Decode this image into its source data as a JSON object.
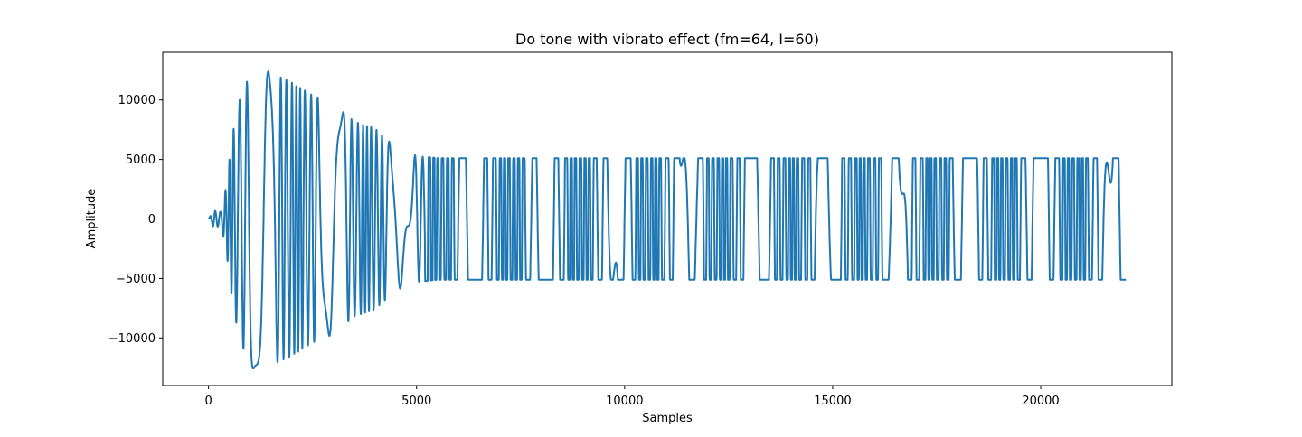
{
  "chart_data": {
    "type": "line",
    "title": "Do tone with vibrato effect (fm=64, I=60)",
    "xlabel": "Samples",
    "ylabel": "Amplitude",
    "xlim": [
      -1100,
      23150
    ],
    "ylim": [
      -14000,
      14000
    ],
    "xticks": [
      0,
      5000,
      10000,
      15000,
      20000
    ],
    "xtick_labels": [
      "0",
      "5000",
      "10000",
      "15000",
      "20000"
    ],
    "yticks": [
      -10000,
      -5000,
      0,
      5000,
      10000
    ],
    "ytick_labels": [
      "−10000",
      "−5000",
      "0",
      "5000",
      "10000"
    ],
    "grid": false,
    "series": [
      {
        "name": "",
        "color": "#1f77b4",
        "description_points": {
          "x": [
            0,
            120,
            300,
            440,
            520,
            620,
            780,
            1100,
            1500,
            2000,
            2500,
            3000,
            3500,
            4000,
            4500,
            5000,
            5500,
            6000,
            8000,
            10000,
            12000,
            14000,
            16000,
            18000,
            20000,
            22050
          ],
          "envelope": [
            0,
            700,
            600,
            3000,
            5500,
            8000,
            10500,
            12800,
            12300,
            11500,
            10400,
            9700,
            8200,
            7600,
            6000,
            5300,
            5100,
            5100,
            5100,
            5100,
            5100,
            5100,
            5100,
            5100,
            5100,
            5100
          ]
        },
        "sample_count": 22050,
        "final_value": -5100
      }
    ]
  }
}
